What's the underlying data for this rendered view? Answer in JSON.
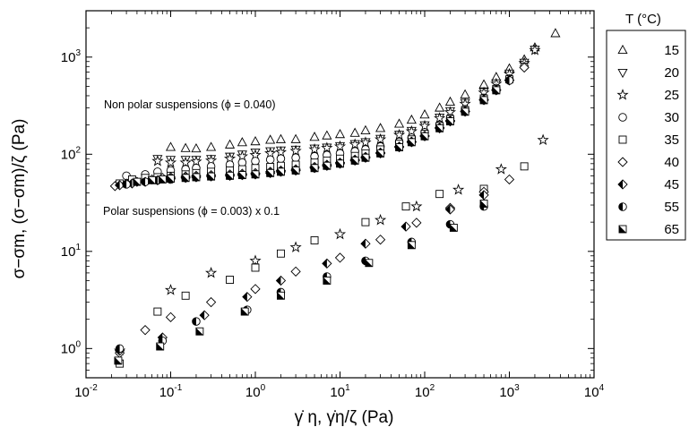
{
  "chart_data": {
    "type": "scatter",
    "x_scale": "log",
    "y_scale": "log",
    "xlim": [
      0.01,
      10000
    ],
    "ylim": [
      0.5,
      3000
    ],
    "grid": false,
    "xlabel": "γ̇ η, γ̇η/ζ (Pa)",
    "ylabel": "σ−σm, (σ−σm)/ζ (Pa)",
    "x_ticks": [
      {
        "base": "10",
        "exp": "-2"
      },
      {
        "base": "10",
        "exp": "-1"
      },
      {
        "base": "10",
        "exp": "0"
      },
      {
        "base": "10",
        "exp": "1"
      },
      {
        "base": "10",
        "exp": "2"
      },
      {
        "base": "10",
        "exp": "3"
      },
      {
        "base": "10",
        "exp": "4"
      }
    ],
    "y_ticks": [
      {
        "base": "10",
        "exp": "0"
      },
      {
        "base": "10",
        "exp": "1"
      },
      {
        "base": "10",
        "exp": "2"
      },
      {
        "base": "10",
        "exp": "3"
      }
    ],
    "annotations": [
      {
        "text": "Non polar suspensions (ϕ = 0.040)"
      },
      {
        "text": "Polar suspensions (ϕ = 0.003) x 0.1"
      }
    ],
    "legend": {
      "title": "T (°C)",
      "placement": "right",
      "entries": [
        {
          "label": "15",
          "marker": "triangle-up-open"
        },
        {
          "label": "20",
          "marker": "triangle-down-open"
        },
        {
          "label": "25",
          "marker": "star-open"
        },
        {
          "label": "30",
          "marker": "circle-open"
        },
        {
          "label": "35",
          "marker": "square-open"
        },
        {
          "label": "40",
          "marker": "diamond-open"
        },
        {
          "label": "45",
          "marker": "diamond-half-filled"
        },
        {
          "label": "55",
          "marker": "circle-half-filled"
        },
        {
          "label": "65",
          "marker": "square-half-filled"
        }
      ]
    },
    "series": [
      {
        "name": "15",
        "group": "non-polar",
        "x": [
          0.1,
          0.15,
          0.2,
          0.3,
          0.5,
          0.7,
          1,
          1.5,
          2,
          3,
          5,
          7,
          10,
          15,
          20,
          30,
          50,
          70,
          100,
          150,
          200,
          300,
          500,
          700,
          1000,
          1500,
          2000,
          3500
        ],
        "y": [
          118,
          115,
          114,
          118,
          125,
          132,
          135,
          140,
          142,
          142,
          150,
          155,
          160,
          165,
          175,
          185,
          205,
          225,
          255,
          300,
          345,
          410,
          520,
          620,
          760,
          940,
          1250,
          1750
        ]
      },
      {
        "name": "20",
        "group": "non-polar",
        "x": [
          0.07,
          0.1,
          0.15,
          0.2,
          0.3,
          0.5,
          0.7,
          1,
          1.5,
          2,
          3,
          5,
          7,
          10,
          15,
          20,
          30,
          50,
          70,
          100,
          150,
          200,
          300,
          500,
          700,
          1000,
          1500,
          2000
        ],
        "y": [
          90,
          88,
          88,
          88,
          90,
          95,
          100,
          105,
          108,
          110,
          112,
          115,
          118,
          122,
          128,
          134,
          145,
          160,
          175,
          200,
          240,
          280,
          340,
          440,
          540,
          680,
          880,
          1200
        ]
      },
      {
        "name": "25",
        "group": "non-polar",
        "x": [
          0.07,
          0.1,
          0.15,
          0.2,
          0.3,
          0.5,
          0.7,
          1,
          1.5,
          2,
          3,
          5,
          7,
          10,
          15,
          20,
          30,
          50,
          70,
          100,
          150,
          200,
          300,
          500,
          700,
          1000,
          1500,
          2000
        ],
        "y": [
          85,
          82,
          82,
          84,
          86,
          90,
          95,
          98,
          102,
          105,
          108,
          112,
          116,
          120,
          126,
          132,
          142,
          158,
          172,
          195,
          235,
          270,
          330,
          430,
          530,
          670,
          870,
          1180
        ]
      },
      {
        "name": "30",
        "group": "non-polar",
        "x": [
          0.03,
          0.05,
          0.07,
          0.1,
          0.15,
          0.2,
          0.3,
          0.5,
          0.7,
          1,
          1.5,
          2,
          3,
          5,
          7,
          10,
          15,
          20,
          30,
          50,
          70,
          100,
          150,
          200,
          300,
          500,
          700,
          1000,
          1500
        ],
        "y": [
          60,
          62,
          66,
          68,
          70,
          72,
          75,
          78,
          82,
          85,
          88,
          90,
          92,
          95,
          98,
          102,
          107,
          112,
          120,
          134,
          148,
          168,
          200,
          235,
          290,
          380,
          480,
          600,
          800
        ]
      },
      {
        "name": "35",
        "group": "non-polar",
        "x": [
          0.025,
          0.035,
          0.05,
          0.07,
          0.1,
          0.15,
          0.2,
          0.3,
          0.5,
          0.7,
          1,
          1.5,
          2,
          3,
          5,
          7,
          10,
          15,
          20,
          30,
          50,
          70,
          100,
          150,
          200,
          300,
          500,
          700,
          1000
        ],
        "y": [
          50,
          55,
          57,
          58,
          60,
          62,
          64,
          66,
          68,
          70,
          72,
          74,
          76,
          78,
          82,
          86,
          90,
          96,
          102,
          112,
          128,
          142,
          162,
          195,
          230,
          285,
          375,
          470,
          590
        ]
      },
      {
        "name": "40",
        "group": "non-polar",
        "x": [
          0.022,
          0.03,
          0.04,
          0.06,
          0.08,
          0.1,
          0.15,
          0.2,
          0.3,
          0.5,
          0.7,
          1,
          1.5,
          2,
          3,
          5,
          7,
          10,
          15,
          20,
          30,
          50,
          70,
          100,
          150,
          200,
          300,
          500,
          700,
          1000,
          1500
        ],
        "y": [
          47,
          50,
          52,
          55,
          57,
          58,
          59,
          60,
          61,
          62,
          63,
          64,
          66,
          68,
          70,
          74,
          78,
          82,
          88,
          94,
          104,
          120,
          135,
          155,
          188,
          222,
          278,
          365,
          460,
          580,
          780
        ]
      },
      {
        "name": "45",
        "group": "non-polar",
        "x": [
          0.025,
          0.035,
          0.05,
          0.07,
          0.1,
          0.15,
          0.2,
          0.3,
          0.5,
          0.7,
          1,
          1.5,
          2,
          3,
          5,
          7,
          10,
          15,
          20,
          30,
          50,
          70,
          100,
          150,
          200,
          300,
          500,
          700,
          1000
        ],
        "y": [
          48,
          50,
          52,
          54,
          56,
          57,
          58,
          59,
          60,
          61,
          62,
          64,
          66,
          68,
          72,
          76,
          80,
          86,
          92,
          102,
          118,
          133,
          153,
          185,
          218,
          274,
          360,
          455,
          575
        ]
      },
      {
        "name": "55",
        "group": "non-polar",
        "x": [
          0.03,
          0.05,
          0.07,
          0.1,
          0.15,
          0.2,
          0.3,
          0.5,
          0.7,
          1,
          1.5,
          2,
          3,
          5,
          7,
          10,
          15,
          20,
          30,
          50,
          70,
          100,
          150,
          200,
          300,
          500,
          700,
          1000
        ],
        "y": [
          49,
          52,
          54,
          55,
          57,
          58,
          59,
          60,
          61,
          62,
          64,
          66,
          68,
          72,
          76,
          80,
          86,
          92,
          102,
          118,
          133,
          153,
          185,
          218,
          274,
          360,
          455,
          575
        ]
      },
      {
        "name": "65",
        "group": "non-polar",
        "x": [
          0.04,
          0.06,
          0.08,
          0.1,
          0.15,
          0.2,
          0.3,
          0.5,
          0.7,
          1,
          1.5,
          2,
          3,
          5,
          7,
          10,
          15,
          20,
          30,
          50,
          70,
          100,
          150,
          200,
          300,
          500,
          700
        ],
        "y": [
          52,
          54,
          55,
          56,
          57,
          58,
          59,
          60,
          61,
          62,
          64,
          66,
          68,
          72,
          76,
          80,
          86,
          92,
          102,
          118,
          133,
          153,
          185,
          218,
          274,
          360,
          455
        ]
      },
      {
        "name": "25",
        "group": "polar",
        "x": [
          0.025,
          0.1,
          0.3,
          1,
          3,
          10,
          30,
          80,
          250,
          800,
          2500
        ],
        "y": [
          0.95,
          4,
          6,
          8,
          11,
          15,
          21,
          29,
          43,
          70,
          140
        ]
      },
      {
        "name": "35",
        "group": "polar",
        "x": [
          0.025,
          0.07,
          0.15,
          0.5,
          1,
          2,
          5,
          20,
          60,
          150,
          500,
          1500
        ],
        "y": [
          0.7,
          2.4,
          3.5,
          5.1,
          6.8,
          9.5,
          13,
          20,
          29,
          39,
          44,
          75
        ]
      },
      {
        "name": "40",
        "group": "polar",
        "x": [
          0.025,
          0.05,
          0.1,
          0.3,
          1,
          3,
          10,
          30,
          80,
          200,
          500,
          1000
        ],
        "y": [
          0.9,
          1.55,
          2.1,
          3,
          4.1,
          6.2,
          8.6,
          13.2,
          19.7,
          28,
          41,
          55
        ]
      },
      {
        "name": "45",
        "group": "polar",
        "x": [
          0.025,
          0.08,
          0.25,
          0.8,
          2,
          7,
          20,
          60,
          200,
          500
        ],
        "y": [
          0.95,
          1.3,
          2.2,
          3.4,
          5,
          7.5,
          12,
          18,
          27,
          38
        ]
      },
      {
        "name": "55",
        "group": "polar",
        "x": [
          0.025,
          0.08,
          0.2,
          0.8,
          2,
          7,
          20,
          70,
          200,
          500
        ],
        "y": [
          1,
          1.2,
          1.9,
          2.5,
          3.8,
          5.5,
          8,
          12.5,
          19,
          29
        ]
      },
      {
        "name": "65",
        "group": "polar",
        "x": [
          0.024,
          0.075,
          0.22,
          0.75,
          2,
          7,
          22,
          70,
          220,
          500
        ],
        "y": [
          0.75,
          1.05,
          1.5,
          2.4,
          3.5,
          5,
          7.6,
          11.6,
          17.5,
          31
        ]
      }
    ]
  }
}
